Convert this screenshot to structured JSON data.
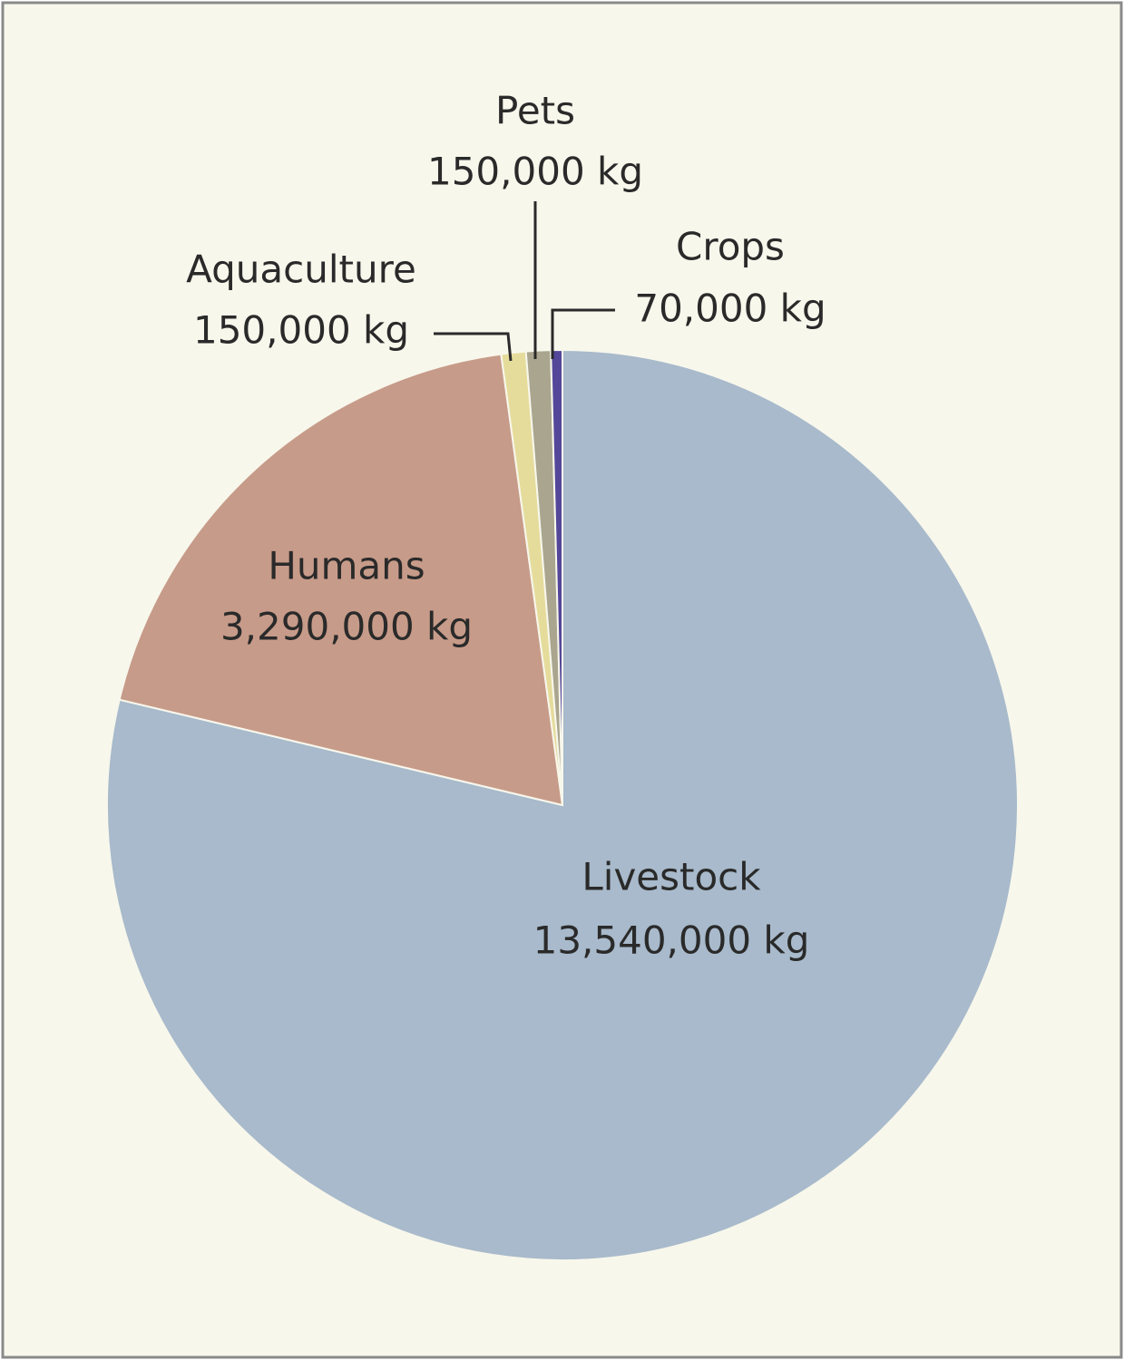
{
  "chart_data": {
    "type": "pie",
    "categories": [
      "Livestock",
      "Humans",
      "Aquaculture",
      "Pets",
      "Crops"
    ],
    "values": [
      13540000,
      3290000,
      150000,
      150000,
      70000
    ],
    "value_labels": [
      "13,540,000 kg",
      "3,290,000 kg",
      "150,000 kg",
      "150,000 kg",
      "70,000 kg"
    ],
    "colors": [
      "#a8bacb",
      "#c79b89",
      "#e5dc9c",
      "#a9a58e",
      "#54479a"
    ]
  }
}
